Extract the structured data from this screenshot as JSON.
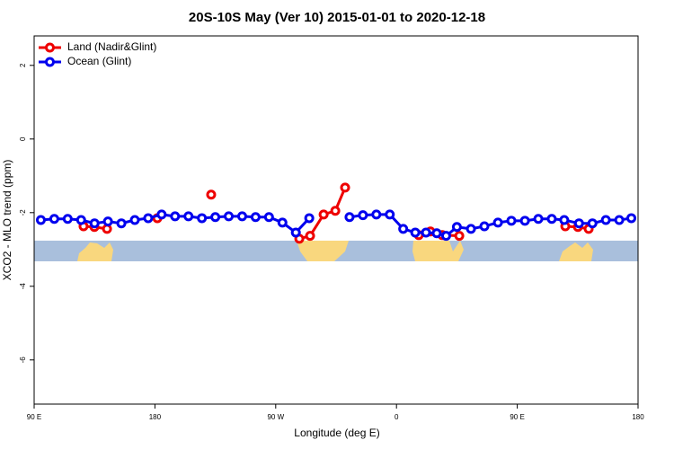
{
  "chart_data": {
    "type": "line",
    "title": "20S-10S May (Ver 10)   2015-01-01 to 2020-12-18",
    "x_label": "Longitude (deg E)",
    "y_label": "XCO2 - MLO trend (ppm)",
    "xlim": [
      90,
      540
    ],
    "ylim": [
      -7.2,
      2.8
    ],
    "xticks": [
      {
        "value": 90,
        "label": "90 E"
      },
      {
        "value": 180,
        "label": "180"
      },
      {
        "value": 270,
        "label": "90 W"
      },
      {
        "value": 360,
        "label": "0"
      },
      {
        "value": 450,
        "label": "90 E"
      },
      {
        "value": 540,
        "label": "180"
      }
    ],
    "yticks": [
      2,
      0,
      -2,
      -4,
      -6
    ],
    "legend": "top-left",
    "series": [
      {
        "name": "Land (Nadir&Glint)",
        "color": "#ee0000",
        "x": [
          126.8,
          134.9,
          144.3,
          null,
          181.8,
          null,
          221.9,
          null,
          287.6,
          295.6,
          305.7,
          314.4,
          321.7,
          null,
          376.6,
          385.3,
          394.1,
          406.8,
          null,
          485.8,
          495.2,
          503.2
        ],
        "values": [
          -2.37,
          -2.39,
          -2.44,
          null,
          -2.15,
          null,
          -1.51,
          null,
          -2.71,
          -2.63,
          -2.05,
          -1.95,
          -1.32,
          null,
          -2.61,
          -2.51,
          -2.61,
          -2.63,
          null,
          -2.37,
          -2.39,
          -2.44
        ]
      },
      {
        "name": "Ocean (Glint)",
        "color": "#0000ee",
        "x": [
          95,
          105,
          115,
          125,
          135,
          145,
          155,
          165,
          175,
          185,
          195,
          205,
          215,
          225,
          235,
          245,
          255,
          265,
          275,
          285,
          295,
          null,
          325,
          335,
          345,
          355,
          365,
          374,
          382,
          390,
          397,
          405,
          415.5,
          425.5,
          435.6,
          445.6,
          455.7,
          465.7,
          475.7,
          485,
          496,
          506,
          516,
          526,
          535
        ],
        "values": [
          -2.2,
          -2.17,
          -2.17,
          -2.2,
          -2.29,
          -2.24,
          -2.29,
          -2.2,
          -2.15,
          -2.05,
          -2.1,
          -2.1,
          -2.15,
          -2.12,
          -2.1,
          -2.1,
          -2.12,
          -2.12,
          -2.27,
          -2.54,
          -2.15,
          null,
          -2.12,
          -2.07,
          -2.05,
          -2.05,
          -2.44,
          -2.54,
          -2.54,
          -2.56,
          -2.63,
          -2.39,
          -2.44,
          -2.37,
          -2.27,
          -2.22,
          -2.22,
          -2.17,
          -2.17,
          -2.2,
          -2.29,
          -2.29,
          -2.2,
          -2.2,
          -2.15
        ]
      }
    ]
  }
}
